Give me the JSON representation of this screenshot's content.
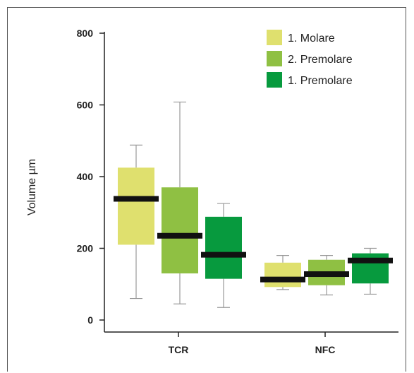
{
  "chart_data": {
    "type": "box",
    "categories": [
      "TCR",
      "NFC"
    ],
    "ylabel": "Volume µm",
    "xlabel": "",
    "ylim": [
      0,
      800
    ],
    "yticks": [
      0,
      200,
      400,
      600,
      800
    ],
    "legend_position": "top-right",
    "grid": false,
    "series": [
      {
        "name": "1. Molare",
        "color": "#dfe06e",
        "boxes": [
          {
            "min": 60,
            "q1": 210,
            "median": 338,
            "q3": 425,
            "max": 488
          },
          {
            "min": 85,
            "q1": 92,
            "median": 113,
            "q3": 160,
            "max": 180
          }
        ]
      },
      {
        "name": "2. Premolare",
        "color": "#8fc043",
        "boxes": [
          {
            "min": 45,
            "q1": 130,
            "median": 235,
            "q3": 370,
            "max": 608
          },
          {
            "min": 70,
            "q1": 97,
            "median": 128,
            "q3": 168,
            "max": 180
          }
        ]
      },
      {
        "name": "1. Premolare",
        "color": "#079a3e",
        "boxes": [
          {
            "min": 35,
            "q1": 115,
            "median": 182,
            "q3": 288,
            "max": 325
          },
          {
            "min": 72,
            "q1": 102,
            "median": 166,
            "q3": 186,
            "max": 200
          }
        ]
      }
    ]
  }
}
